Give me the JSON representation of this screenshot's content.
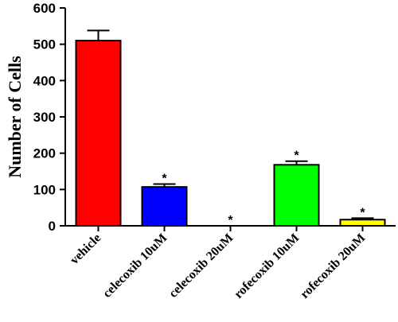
{
  "chart_data": {
    "type": "bar",
    "title": "",
    "xlabel": "",
    "ylabel": "Number of Cells",
    "ylim": [
      0,
      600
    ],
    "yticks": [
      0,
      100,
      200,
      300,
      400,
      500,
      600
    ],
    "grid": false,
    "legend": "none",
    "categories": [
      "vehicle",
      "celecoxib 10uM",
      "celecoxib 20uM",
      "rofecoxib 10uM",
      "rofecoxib 20uM"
    ],
    "values": [
      510,
      107,
      0,
      168,
      17
    ],
    "errors": [
      28,
      8,
      0,
      10,
      4
    ],
    "annotations": [
      "",
      "*",
      "*",
      "*",
      "*"
    ],
    "colors": [
      "#ff0000",
      "#0000ff",
      "#ffffff",
      "#00ff00",
      "#ffff00"
    ]
  }
}
